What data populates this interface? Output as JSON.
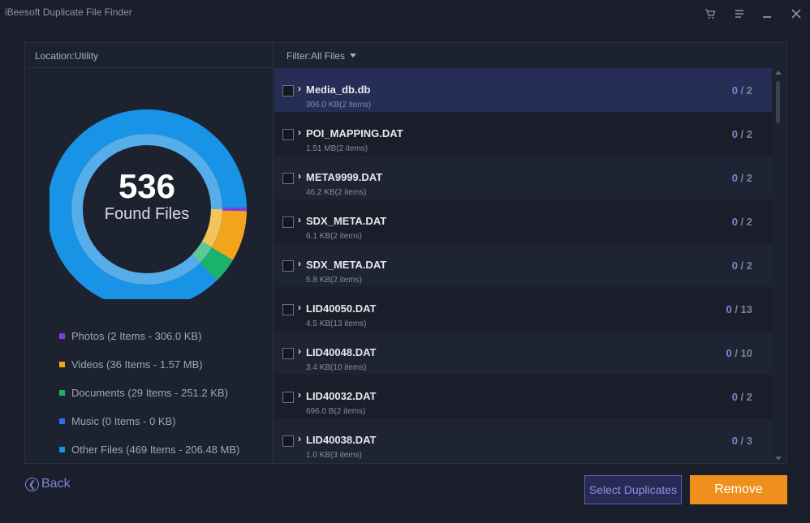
{
  "app": {
    "title": "iBeesoft Duplicate File Finder"
  },
  "window_controls": {
    "cart": "cart-icon",
    "menu": "menu-icon",
    "minimize": "minimize-icon",
    "close": "close-icon"
  },
  "left": {
    "location_label": "Location:Utility",
    "found_count": "536",
    "found_label": "Found Files",
    "legend": [
      {
        "label": "Photos (2 Items - 306.0 KB)",
        "color": "#7b3fe4"
      },
      {
        "label": "Videos (36 Items - 1.57 MB)",
        "color": "#f4a41b"
      },
      {
        "label": "Documents (29 Items - 251.2 KB)",
        "color": "#1bb26b"
      },
      {
        "label": "Music (0 Items - 0 KB)",
        "color": "#2c6ee8"
      },
      {
        "label": "Other Files (469 Items - 206.48 MB)",
        "color": "#1894e6"
      }
    ]
  },
  "right": {
    "filter_label": "Filter:All Files",
    "rows": [
      {
        "name": "Media_db.db",
        "meta": "306.0 KB(2 items)",
        "selected": "0",
        "total": " / 2"
      },
      {
        "name": "POI_MAPPING.DAT",
        "meta": "1.51 MB(2 items)",
        "selected": "0",
        "total": " / 2"
      },
      {
        "name": "META9999.DAT",
        "meta": "46.2 KB(2 items)",
        "selected": "0",
        "total": " / 2"
      },
      {
        "name": "SDX_META.DAT",
        "meta": "6.1 KB(2 items)",
        "selected": "0",
        "total": " / 2"
      },
      {
        "name": "SDX_META.DAT",
        "meta": "5.8 KB(2 items)",
        "selected": "0",
        "total": " / 2"
      },
      {
        "name": "LID40050.DAT",
        "meta": "4.5 KB(13 items)",
        "selected": "0",
        "total": " / 13"
      },
      {
        "name": "LID40048.DAT",
        "meta": "3.4 KB(10 items)",
        "selected": "0",
        "total": " / 10"
      },
      {
        "name": "LID40032.DAT",
        "meta": "696.0 B(2 items)",
        "selected": "0",
        "total": " / 2"
      },
      {
        "name": "LID40038.DAT",
        "meta": "1.0 KB(3 items)",
        "selected": "0",
        "total": " / 3"
      }
    ]
  },
  "footer": {
    "back_label": "Back",
    "select_duplicates_label": "Select Duplicates",
    "remove_label": "Remove"
  }
}
